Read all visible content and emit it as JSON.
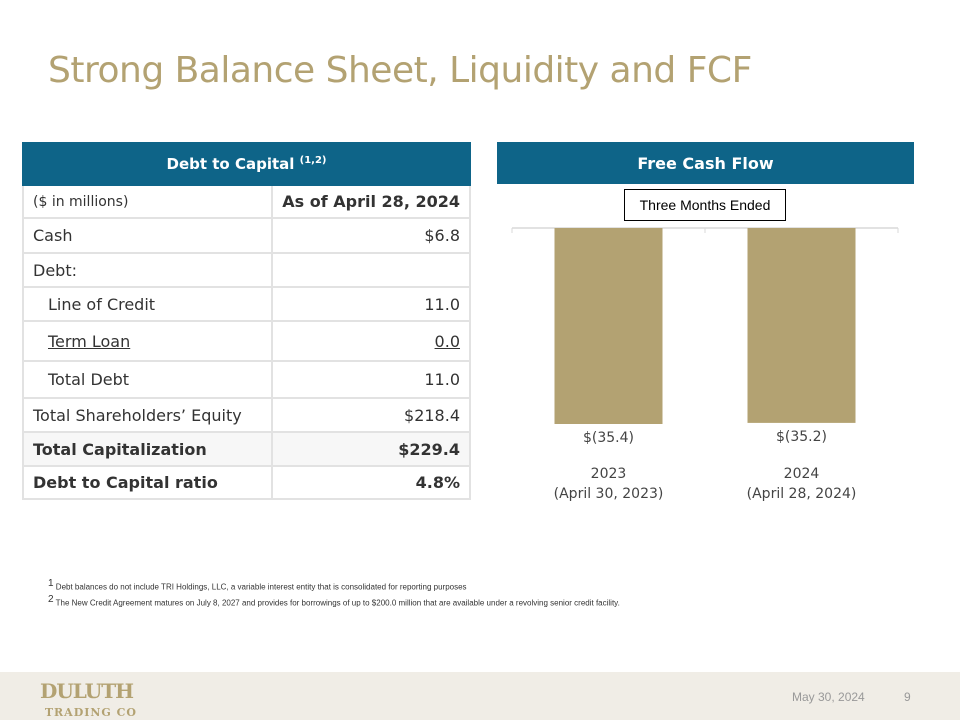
{
  "title": "Strong Balance Sheet, Liquidity and FCF",
  "table": {
    "header": "Debt to Capital",
    "header_sup": "(1,2)",
    "col_label": "($ in millions)",
    "col_value": "As of April 28, 2024",
    "rows": [
      {
        "label": "Cash",
        "value": "$6.8"
      },
      {
        "label": "Debt:",
        "value": ""
      },
      {
        "label": "Line of Credit",
        "value": "11.0"
      },
      {
        "label": "Term Loan",
        "value": "0.0"
      },
      {
        "label": "Total Debt",
        "value": "11.0"
      },
      {
        "label": "Total Shareholders’ Equity",
        "value": "$218.4"
      },
      {
        "label": "Total Capitalization",
        "value": "$229.4"
      },
      {
        "label": "Debt to Capital ratio",
        "value": "4.8%"
      }
    ]
  },
  "chart_data": {
    "type": "bar",
    "title": "Free Cash Flow",
    "subtitle": "Three Months Ended",
    "categories": [
      "2023",
      "2024"
    ],
    "category_sublabels": [
      "(April 30, 2023)",
      "(April 28, 2024)"
    ],
    "values": [
      -35.4,
      -35.2
    ],
    "data_labels": [
      "$(35.4)",
      "$(35.2)"
    ],
    "bar_color": "#b3a272",
    "grid": false
  },
  "footnotes": [
    {
      "sup": "1",
      "text": "Debt balances do not include TRI Holdings, LLC, a variable interest entity that is consolidated for reporting purposes"
    },
    {
      "sup": "2",
      "text": "The New Credit Agreement matures on July 8, 2027 and provides for borrowings of up to $200.0 million that are available under a revolving senior credit facility."
    }
  ],
  "footer": {
    "logo": "DULUTH TRADING CO",
    "date": "May 30, 2024",
    "page": "9"
  },
  "colors": {
    "accent": "#b3a272",
    "header": "#0e6488",
    "footer_bg": "#f0ede6"
  }
}
